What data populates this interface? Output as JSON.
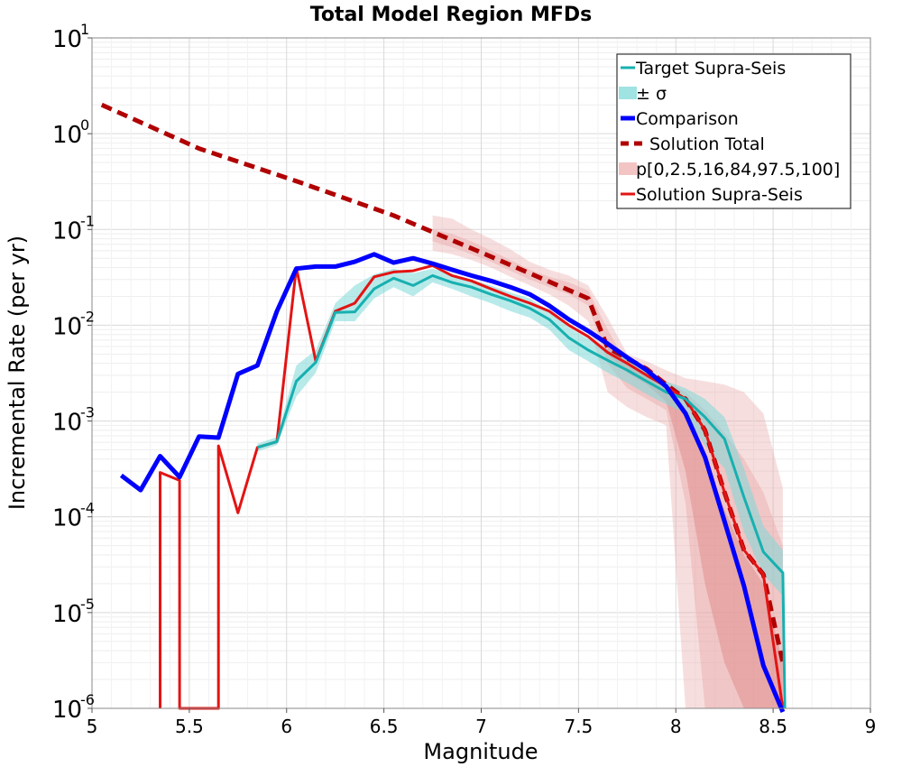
{
  "chart_data": {
    "type": "line",
    "title": "Total Model Region MFDs",
    "xlabel": "Magnitude",
    "ylabel": "Incremental Rate (per yr)",
    "xlim": [
      5,
      9
    ],
    "ylim": [
      1e-06,
      10
    ],
    "yscale": "log",
    "grid": true,
    "legend_position": "top-right",
    "x_ticks": [
      "5",
      "5.5",
      "6",
      "6.5",
      "7",
      "7.5",
      "8",
      "8.5",
      "9"
    ],
    "y_ticks": [
      {
        "base": "10",
        "exp": "-6"
      },
      {
        "base": "10",
        "exp": "-5"
      },
      {
        "base": "10",
        "exp": "-4"
      },
      {
        "base": "10",
        "exp": "-3"
      },
      {
        "base": "10",
        "exp": "-2"
      },
      {
        "base": "10",
        "exp": "-1"
      },
      {
        "base": "10",
        "exp": "0"
      },
      {
        "base": "10",
        "exp": "1"
      }
    ],
    "legend": [
      {
        "label": "Target Supra-Seis",
        "kind": "line",
        "color": "#17b0b0"
      },
      {
        "label": "± σ",
        "kind": "band",
        "color": "#9fe3e3"
      },
      {
        "label": "Comparison",
        "kind": "line-thick",
        "color": "#0000ff"
      },
      {
        "label": "Solution Total",
        "kind": "dashed",
        "color": "#b00000"
      },
      {
        "label": "p[0,2.5,16,84,97.5,100]",
        "kind": "band",
        "color": "#f2c4c4"
      },
      {
        "label": "Solution Supra-Seis",
        "kind": "line",
        "color": "#e31414"
      }
    ],
    "bands": [
      {
        "name": "p 0-100",
        "color": "#e9a8a8",
        "opacity": 0.38,
        "x": [
          6.75,
          6.85,
          6.95,
          7.05,
          7.15,
          7.25,
          7.35,
          7.45,
          7.55,
          7.65,
          7.75,
          7.85,
          7.95,
          8.05,
          8.15,
          8.25,
          8.35,
          8.45,
          8.55
        ],
        "upper": [
          0.14,
          0.13,
          0.1,
          0.08,
          0.062,
          0.046,
          0.038,
          0.033,
          0.026,
          0.012,
          0.005,
          0.0042,
          0.0034,
          0.0028,
          0.0026,
          0.0024,
          0.002,
          0.0012,
          0.0002
        ],
        "lower": [
          0.06,
          0.055,
          0.048,
          0.04,
          0.032,
          0.026,
          0.021,
          0.016,
          0.011,
          0.002,
          0.0014,
          0.0011,
          0.0009,
          1e-06,
          1e-06,
          1e-06,
          1e-06,
          1e-06,
          1e-06
        ]
      },
      {
        "name": "p 2.5-97.5",
        "color": "#e9a8a8",
        "opacity": 0.45,
        "x": [
          6.75,
          6.85,
          6.95,
          7.05,
          7.15,
          7.25,
          7.35,
          7.45,
          7.55,
          7.65,
          7.75,
          7.85,
          7.95,
          8.05,
          8.15,
          8.25,
          8.35,
          8.45,
          8.55
        ],
        "upper": [
          0.1,
          0.09,
          0.075,
          0.06,
          0.048,
          0.038,
          0.032,
          0.028,
          0.023,
          0.009,
          0.004,
          0.0032,
          0.0026,
          0.002,
          0.0013,
          0.00075,
          0.0004,
          0.00018,
          5e-05
        ],
        "lower": [
          0.075,
          0.065,
          0.055,
          0.046,
          0.037,
          0.03,
          0.025,
          0.021,
          0.016,
          0.004,
          0.0022,
          0.0017,
          0.0013,
          0.00014,
          1e-06,
          1e-06,
          1e-06,
          1e-06,
          1e-06
        ]
      },
      {
        "name": "p 16-84",
        "color": "#e08a8a",
        "opacity": 0.5,
        "x": [
          7.65,
          7.75,
          7.85,
          7.95,
          8.05,
          8.15,
          8.25,
          8.35,
          8.45,
          8.55
        ],
        "upper": [
          0.007,
          0.0043,
          0.0031,
          0.0022,
          0.0012,
          0.0004,
          0.00012,
          4e-05,
          2e-05,
          3e-06
        ],
        "lower": [
          0.005,
          0.0032,
          0.0024,
          0.0016,
          0.0003,
          2e-05,
          3e-06,
          1e-06,
          1e-06,
          1e-06
        ]
      },
      {
        "name": "Target Supra-Seis ± σ",
        "color": "#7fd9d9",
        "opacity": 0.55,
        "x": [
          5.85,
          5.95,
          6.05,
          6.15,
          6.25,
          6.35,
          6.45,
          6.55,
          6.65,
          6.75,
          6.85,
          6.95,
          7.05,
          7.15,
          7.25,
          7.35,
          7.45,
          7.55,
          7.65,
          7.75,
          7.85,
          7.95,
          8.05,
          8.15,
          8.25,
          8.35,
          8.45,
          8.55
        ],
        "upper": [
          0.00058,
          0.00068,
          0.0038,
          0.0055,
          0.017,
          0.026,
          0.034,
          0.039,
          0.035,
          0.039,
          0.034,
          0.03,
          0.026,
          0.022,
          0.019,
          0.014,
          0.0095,
          0.0072,
          0.0056,
          0.0044,
          0.0034,
          0.0026,
          0.0022,
          0.0017,
          0.0011,
          0.00032,
          8e-05,
          4.5e-05
        ],
        "lower": [
          0.00048,
          0.00056,
          0.0018,
          0.0032,
          0.011,
          0.011,
          0.019,
          0.025,
          0.02,
          0.028,
          0.024,
          0.02,
          0.017,
          0.014,
          0.012,
          0.009,
          0.0055,
          0.0042,
          0.0032,
          0.0025,
          0.0019,
          0.0015,
          0.0012,
          0.00055,
          0.00032,
          7e-05,
          2.5e-05,
          1.5e-05
        ]
      }
    ],
    "series": [
      {
        "name": "Solution Total",
        "color": "#b00000",
        "width": 5,
        "dash": "12,7",
        "x": [
          5.05,
          5.55,
          6.05,
          6.55,
          7.05,
          7.55,
          7.65,
          7.75,
          7.85,
          7.95,
          8.05,
          8.15,
          8.25,
          8.35,
          8.45,
          8.55
        ],
        "y": [
          2.0,
          0.7,
          0.32,
          0.14,
          0.052,
          0.019,
          0.0058,
          0.0045,
          0.0035,
          0.0024,
          0.0017,
          0.0008,
          0.00018,
          4.5e-05,
          2.5e-05,
          3e-06
        ]
      },
      {
        "name": "Solution Supra-Seis",
        "color": "#e31414",
        "width": 3,
        "dash": "",
        "x": [
          5.35,
          5.35,
          5.45,
          5.45,
          5.65,
          5.65,
          5.75,
          5.85,
          5.95,
          6.05,
          6.15,
          6.25,
          6.35,
          6.45,
          6.55,
          6.65,
          6.75,
          6.85,
          6.95,
          7.05,
          7.15,
          7.25,
          7.35,
          7.45,
          7.55,
          7.65,
          7.75,
          7.85,
          7.95,
          8.05,
          8.15,
          8.25,
          8.35,
          8.45,
          8.55
        ],
        "y": [
          1e-06,
          0.00029,
          0.00024,
          1e-06,
          1e-06,
          0.00055,
          0.00011,
          0.00053,
          0.00061,
          0.04,
          0.0042,
          0.014,
          0.017,
          0.032,
          0.036,
          0.037,
          0.042,
          0.033,
          0.029,
          0.024,
          0.02,
          0.017,
          0.014,
          0.01,
          0.0076,
          0.0052,
          0.004,
          0.003,
          0.0023,
          0.0017,
          0.0008,
          0.00018,
          4.5e-05,
          2.5e-05,
          1e-06
        ]
      },
      {
        "name": "Target Supra-Seis",
        "color": "#17b0b0",
        "width": 3,
        "dash": "",
        "x": [
          5.85,
          5.95,
          6.05,
          6.15,
          6.25,
          6.35,
          6.45,
          6.55,
          6.65,
          6.75,
          6.85,
          6.95,
          7.05,
          7.15,
          7.25,
          7.35,
          7.45,
          7.55,
          7.65,
          7.75,
          7.85,
          7.95,
          8.05,
          8.15,
          8.25,
          8.35,
          8.45,
          8.55,
          8.56
        ],
        "y": [
          0.00053,
          0.00061,
          0.0026,
          0.0041,
          0.0136,
          0.0138,
          0.024,
          0.031,
          0.026,
          0.033,
          0.028,
          0.025,
          0.021,
          0.018,
          0.015,
          0.0115,
          0.0074,
          0.0055,
          0.0043,
          0.0034,
          0.0026,
          0.002,
          0.0017,
          0.0011,
          0.00065,
          0.00016,
          4.3e-05,
          2.6e-05,
          1e-06
        ]
      },
      {
        "name": "Comparison",
        "color": "#0000ff",
        "width": 5,
        "dash": "",
        "x": [
          5.15,
          5.25,
          5.35,
          5.45,
          5.55,
          5.65,
          5.75,
          5.85,
          5.95,
          6.05,
          6.15,
          6.25,
          6.35,
          6.45,
          6.55,
          6.65,
          6.75,
          6.85,
          6.95,
          7.05,
          7.15,
          7.25,
          7.35,
          7.45,
          7.55,
          7.65,
          7.75,
          7.85,
          7.95,
          8.05,
          8.15,
          8.25,
          8.35,
          8.45,
          8.55
        ],
        "y": [
          0.00027,
          0.00019,
          0.00043,
          0.00026,
          0.00069,
          0.00067,
          0.0031,
          0.0038,
          0.014,
          0.039,
          0.041,
          0.041,
          0.046,
          0.055,
          0.045,
          0.05,
          0.044,
          0.038,
          0.033,
          0.029,
          0.025,
          0.021,
          0.016,
          0.0115,
          0.0087,
          0.0064,
          0.0046,
          0.0034,
          0.0023,
          0.0012,
          0.00042,
          9e-05,
          1.9e-05,
          2.8e-06,
          9e-07
        ]
      }
    ]
  }
}
